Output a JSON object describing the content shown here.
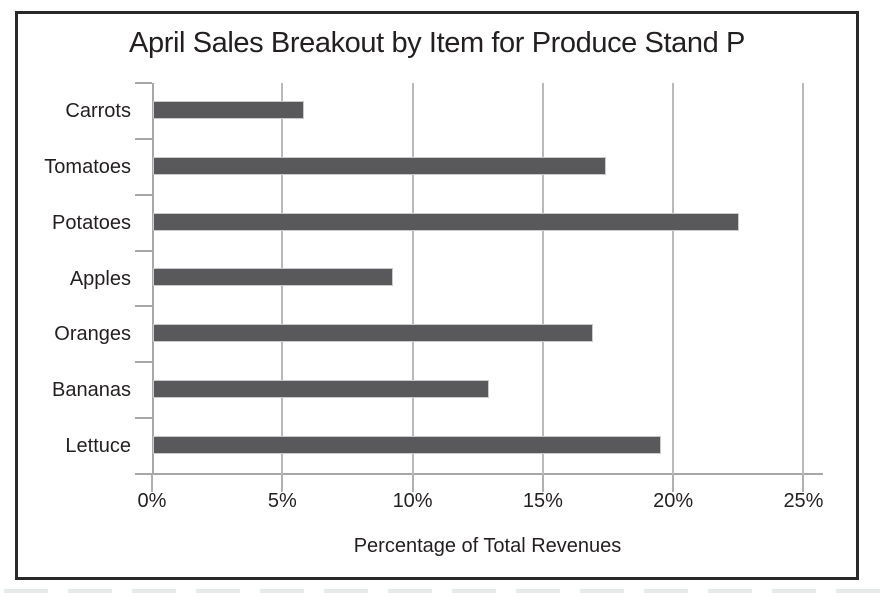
{
  "figure": {
    "title": "April Sales Breakout by Item for Produce Stand P"
  },
  "chart_data": {
    "type": "bar",
    "orientation": "horizontal",
    "title": "April Sales Breakout by Item for Produce Stand P",
    "categories": [
      "Carrots",
      "Tomatoes",
      "Potatoes",
      "Apples",
      "Oranges",
      "Bananas",
      "Lettuce"
    ],
    "values": [
      5.8,
      17.4,
      22.5,
      9.2,
      16.9,
      12.9,
      19.5
    ],
    "xlabel": "Percentage of Total Revenues",
    "ylabel": "",
    "xlim": [
      0,
      25.75
    ],
    "x_ticks": [
      0,
      5,
      10,
      15,
      20,
      25
    ],
    "x_tick_labels": [
      "0%",
      "5%",
      "10%",
      "15%",
      "20%",
      "25%"
    ],
    "grid": "vertical-only",
    "legend_position": "none",
    "colors": {
      "bar_fill": "#59595b",
      "bar_edge": "#c9cacc",
      "gridline": "#b9babc",
      "axis": "#a6a7a9",
      "text": "#231f20",
      "figure_border": "#2b282a",
      "background": "#ffffff"
    }
  }
}
